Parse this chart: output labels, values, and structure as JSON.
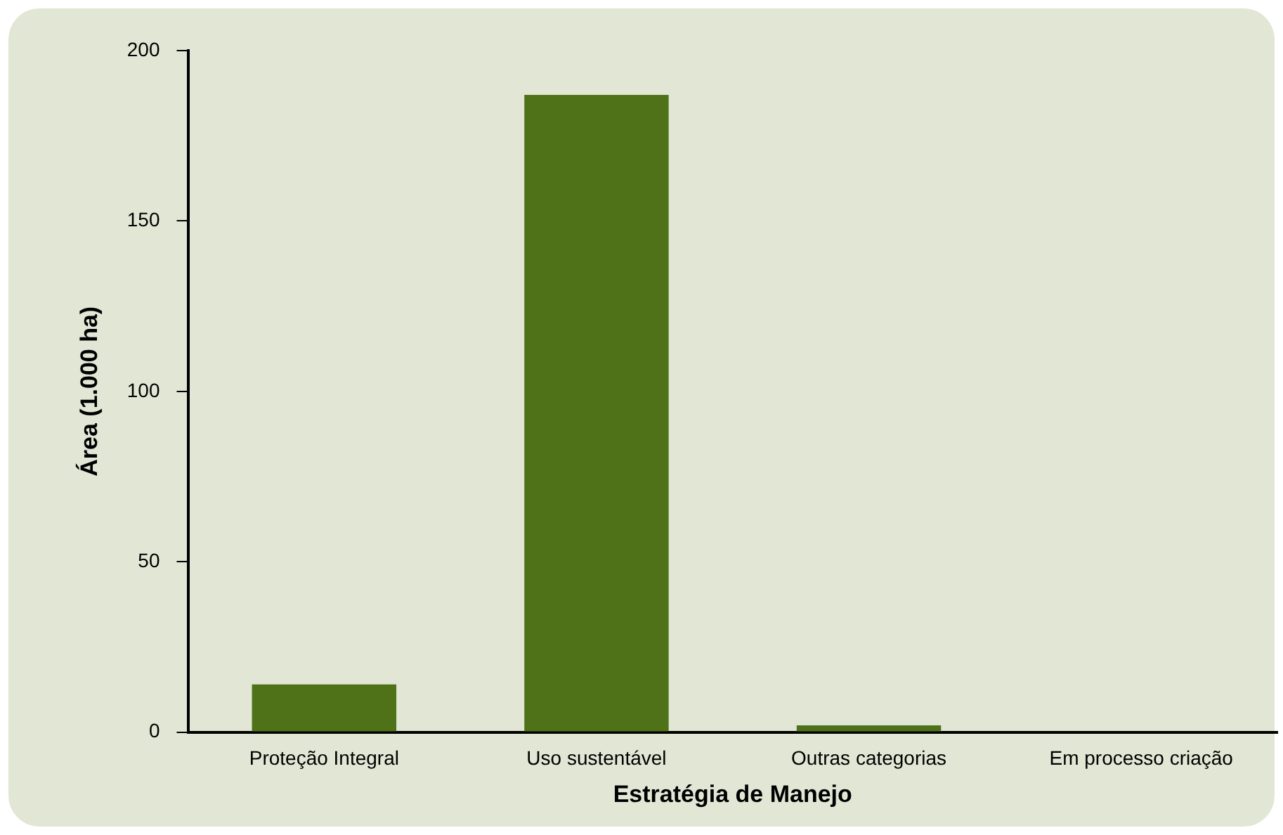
{
  "chart_data": {
    "type": "bar",
    "xlabel": "Estratégia de Manejo",
    "ylabel": "Área (1.000 ha)",
    "categories": [
      "Proteção Integral",
      "Uso sustentável",
      "Outras categorias",
      "Em processo criação"
    ],
    "values": [
      14,
      187,
      2,
      0
    ],
    "color": "#4f7219",
    "ylim": [
      0,
      200
    ],
    "yticks": [
      0,
      50,
      100,
      150,
      200
    ],
    "grid": false,
    "legend": false
  }
}
